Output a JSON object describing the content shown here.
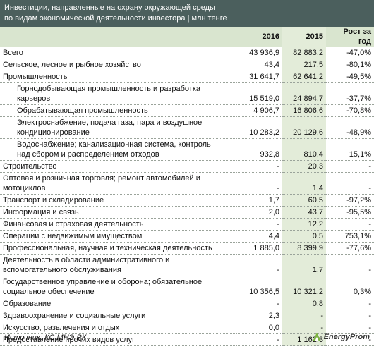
{
  "header": {
    "title_lines": [
      "Инвестиции, направленные на охрану окружающей среды",
      "по видам экономической деятельности инвестора | млн тенге"
    ]
  },
  "table": {
    "columns": [
      "2016",
      "2015",
      "Рост за год"
    ],
    "rows": [
      {
        "cells": [
          "Всего",
          "43 936,9",
          "82 883,2",
          "-47,0%"
        ],
        "level": 0
      },
      {
        "cells": [
          "Сельское, лесное и рыбное хозяйство",
          "43,4",
          "217,5",
          "-80,1%"
        ],
        "level": 0
      },
      {
        "cells": [
          "Промышленность",
          "31 641,7",
          "62 641,2",
          "-49,5%"
        ],
        "level": 0
      },
      {
        "cells": [
          "Горнодобывающая промышленность и разработка карьеров",
          "15 519,0",
          "24 894,7",
          "-37,7%"
        ],
        "level": 1
      },
      {
        "cells": [
          "Обрабатывающая промышленность",
          "4 906,7",
          "16 806,6",
          "-70,8%"
        ],
        "level": 1
      },
      {
        "cells": [
          "Электроснабжение, подача газа, пара и воздушное кондиционирование",
          "10 283,2",
          "20 129,6",
          "-48,9%"
        ],
        "level": 1
      },
      {
        "cells": [
          "Водоснабжение; канализационная система, контроль над сбором и распределением отходов",
          "932,8",
          "810,4",
          "15,1%"
        ],
        "level": 1
      },
      {
        "cells": [
          "Строительство",
          "-",
          "20,3",
          "-"
        ],
        "level": 0
      },
      {
        "cells": [
          "Оптовая и розничная торговля; ремонт автомобилей и мотоциклов",
          "-",
          "1,4",
          "-"
        ],
        "level": 0
      },
      {
        "cells": [
          "Транспорт и складирование",
          "1,7",
          "60,5",
          "-97,2%"
        ],
        "level": 0
      },
      {
        "cells": [
          "Информация и связь",
          "2,0",
          "43,7",
          "-95,5%"
        ],
        "level": 0
      },
      {
        "cells": [
          "Финансовая и страховая деятельность",
          "-",
          "12,2",
          "-"
        ],
        "level": 0
      },
      {
        "cells": [
          "Операции с недвижимым имуществом",
          "4,4",
          "0,5",
          "753,1%"
        ],
        "level": 0
      },
      {
        "cells": [
          "Профессиональная, научная и техническая деятельность",
          "1 885,0",
          "8 399,9",
          "-77,6%"
        ],
        "level": 0
      },
      {
        "cells": [
          "Деятельность в области административного и вспомогательного обслуживания",
          "-",
          "1,7",
          "-"
        ],
        "level": 0
      },
      {
        "cells": [
          "Государственное управление и оборона; обязательное социальное обеспечение",
          "10 356,5",
          "10 321,2",
          "0,3%"
        ],
        "level": 0
      },
      {
        "cells": [
          "Образование",
          "-",
          "0,8",
          "-"
        ],
        "level": 0
      },
      {
        "cells": [
          "Здравоохранение и социальные услуги",
          "2,3",
          "-",
          "-"
        ],
        "level": 0
      },
      {
        "cells": [
          "Искусство, развлечения и отдых",
          "0,0",
          "-",
          "-"
        ],
        "level": 0
      },
      {
        "cells": [
          "Предоставление прочих видов услуг",
          "-",
          "1 162,3",
          "-"
        ],
        "level": 0
      }
    ]
  },
  "footer": {
    "source": "Источник: КС МНЭ РК",
    "logo": "EnergyProm"
  }
}
